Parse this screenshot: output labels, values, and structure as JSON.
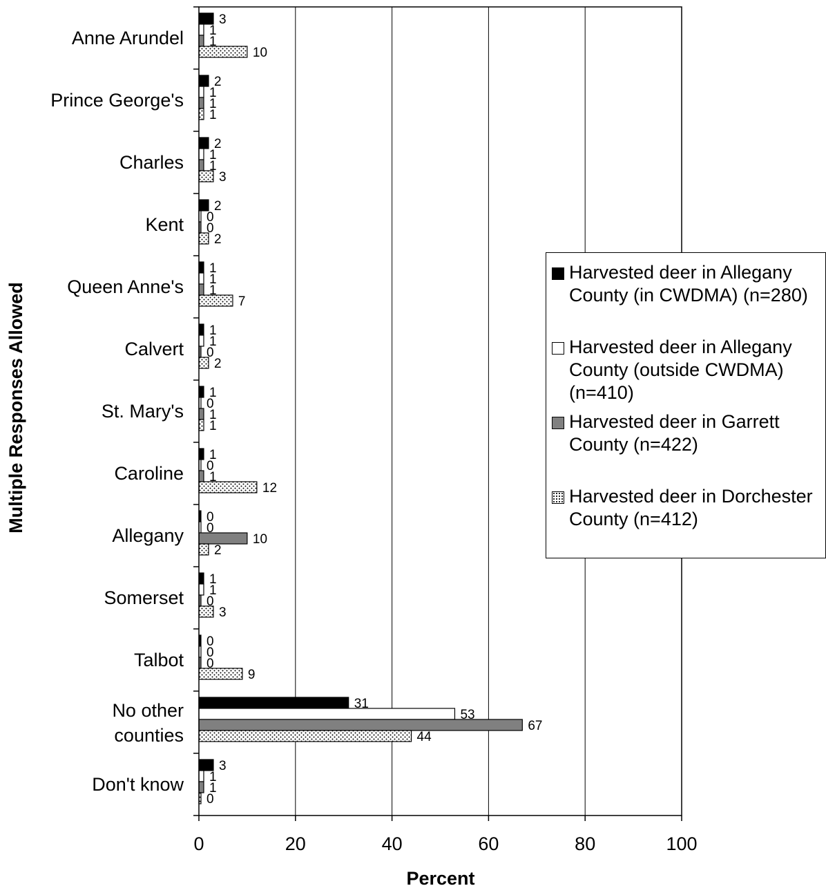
{
  "chart_data": {
    "type": "bar",
    "orientation": "horizontal",
    "categories": [
      "Anne Arundel",
      "Prince George's",
      "Charles",
      "Kent",
      "Queen Anne's",
      "Calvert",
      "St. Mary's",
      "Caroline",
      "Allegany",
      "Somerset",
      "Talbot",
      "No other counties",
      "Don't know"
    ],
    "series": [
      {
        "name": "Harvested deer in Allegany County (in CWDMA) (n=280)",
        "values": [
          3,
          2,
          2,
          2,
          1,
          1,
          1,
          1,
          0,
          1,
          0,
          31,
          3
        ],
        "fill": "#000000"
      },
      {
        "name": "Harvested deer in Allegany County (outside CWDMA) (n=410)",
        "values": [
          1,
          1,
          1,
          0,
          1,
          1,
          0,
          0,
          0,
          1,
          0,
          53,
          1
        ],
        "fill": "#ffffff"
      },
      {
        "name": "Harvested deer in Garrett County (n=422)",
        "values": [
          1,
          1,
          1,
          0,
          1,
          0,
          1,
          1,
          10,
          0,
          0,
          67,
          1
        ],
        "fill": "#808080"
      },
      {
        "name": "Harvested deer in Dorchester County (n=412)",
        "values": [
          10,
          1,
          3,
          2,
          7,
          2,
          1,
          12,
          2,
          3,
          9,
          44,
          0
        ],
        "fill": "dots"
      }
    ],
    "xlabel": "Percent",
    "ylabel": "Multiple Responses Allowed",
    "xlim": [
      0,
      100
    ],
    "xticks": [
      0,
      20,
      40,
      60,
      80,
      100
    ],
    "grid": "vertical",
    "legend_position": "right"
  }
}
